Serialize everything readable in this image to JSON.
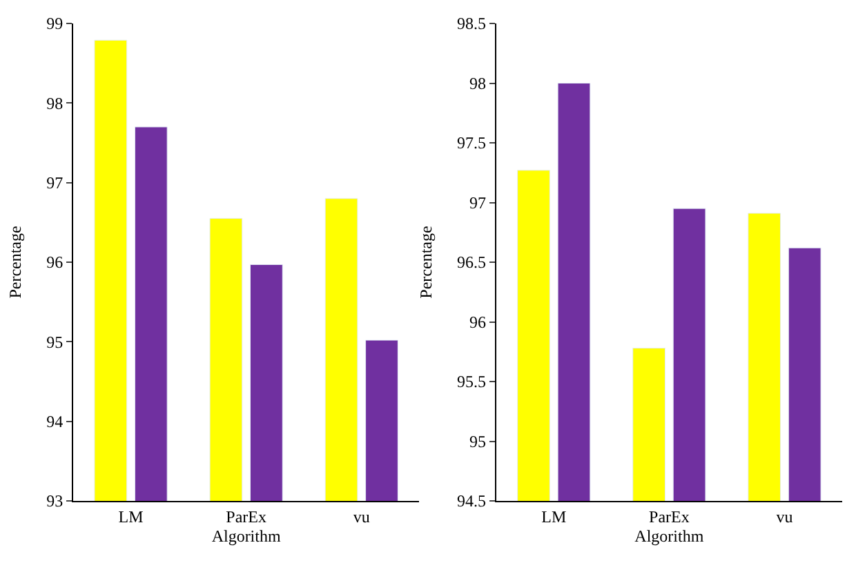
{
  "chart_data": [
    {
      "type": "bar",
      "xlabel": "Algorithm",
      "ylabel": "Percentage",
      "categories": [
        "LM",
        "ParEx",
        "vu"
      ],
      "ylim": [
        93,
        99
      ],
      "yticks": [
        93,
        94,
        95,
        96,
        97,
        98,
        99
      ],
      "grid": false,
      "series": [
        {
          "color": "#ffff00",
          "values": [
            98.79,
            96.55,
            96.8
          ]
        },
        {
          "color": "#7030a0",
          "values": [
            97.7,
            95.97,
            95.02
          ]
        }
      ]
    },
    {
      "type": "bar",
      "xlabel": "Algorithm",
      "ylabel": "Percentage",
      "categories": [
        "LM",
        "ParEx",
        "vu"
      ],
      "ylim": [
        94.5,
        98.5
      ],
      "yticks": [
        94.5,
        95,
        95.5,
        96,
        96.5,
        97,
        97.5,
        98,
        98.5
      ],
      "grid": false,
      "series": [
        {
          "color": "#ffff00",
          "values": [
            97.27,
            95.78,
            96.91
          ]
        },
        {
          "color": "#7030a0",
          "values": [
            98.0,
            96.95,
            96.62
          ]
        }
      ]
    }
  ]
}
